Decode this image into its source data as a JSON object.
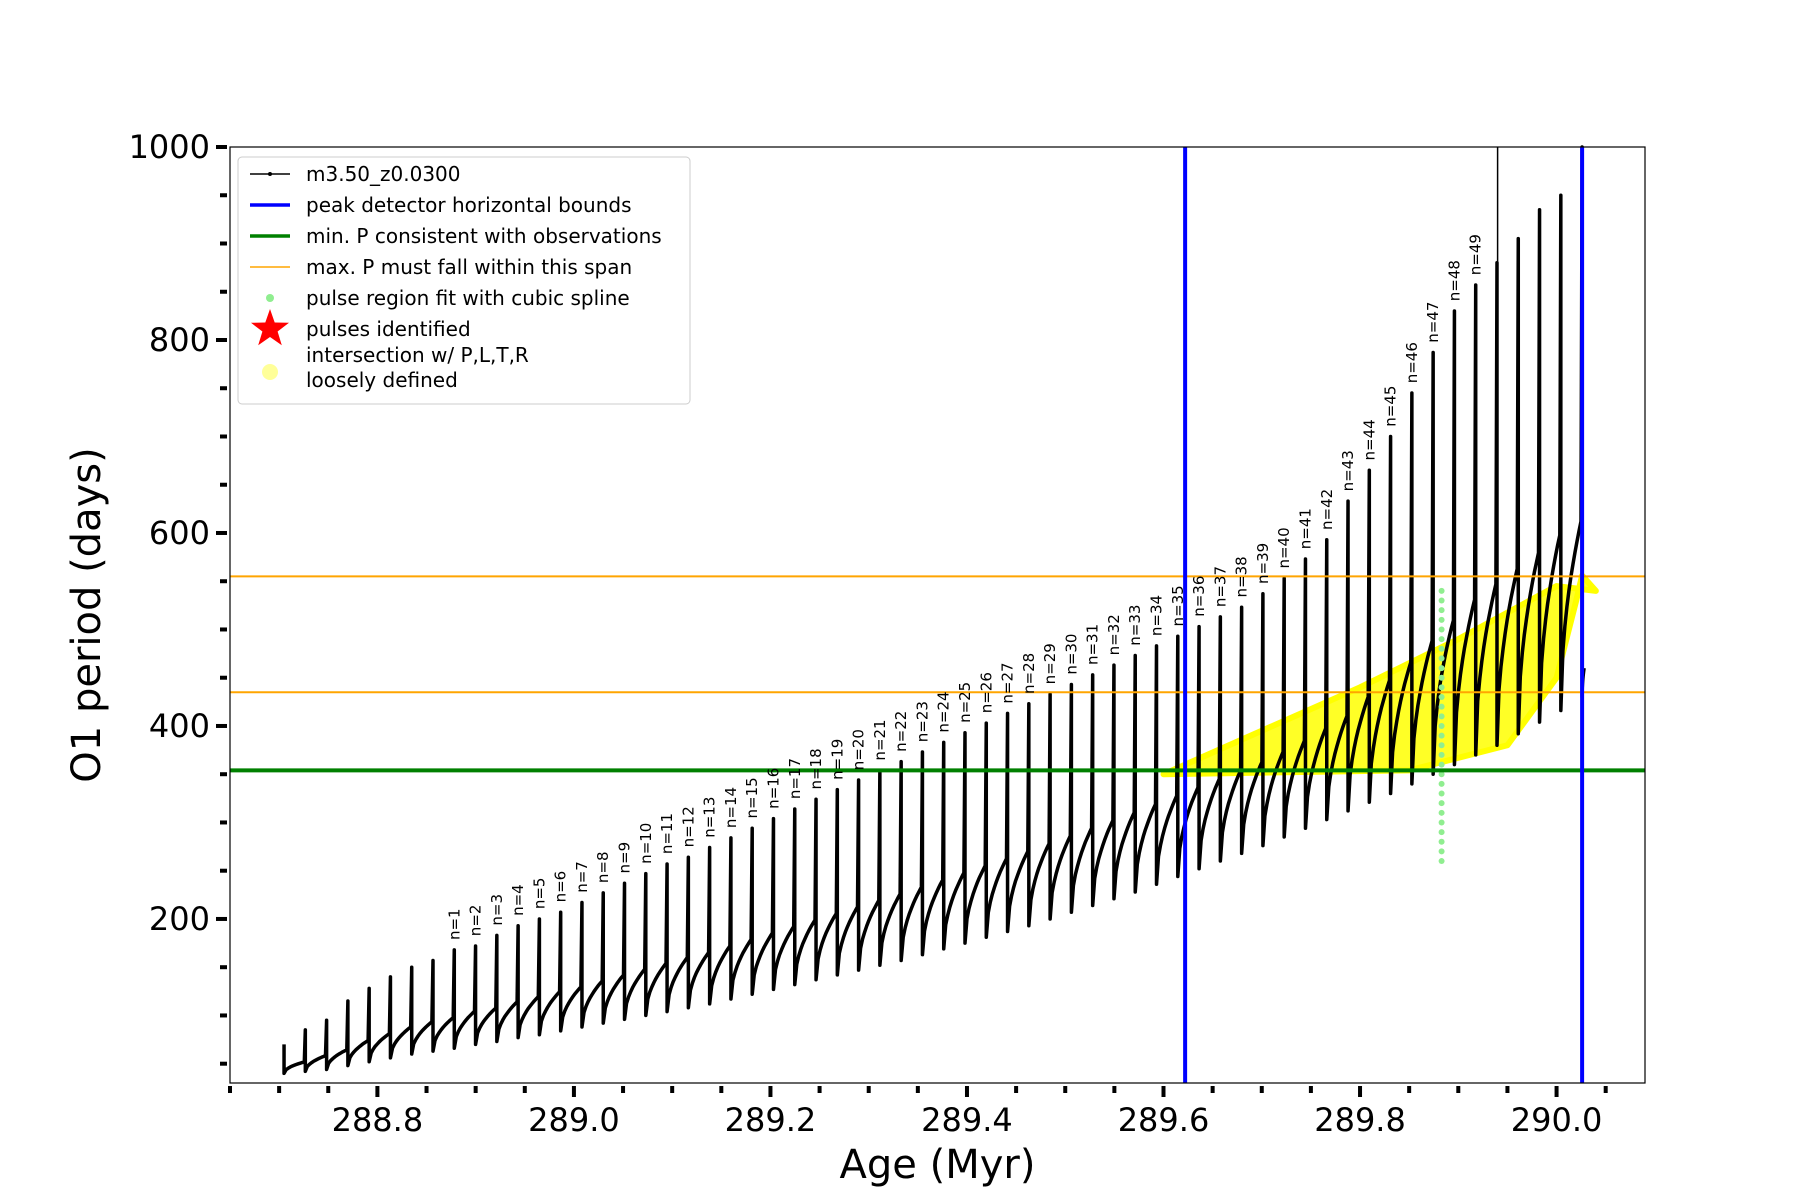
{
  "chart_data": {
    "type": "scatter",
    "title": "",
    "xlabel": "Age (Myr)",
    "ylabel": "O1 period (days)",
    "xlim": [
      288.65,
      290.09
    ],
    "ylim": [
      30,
      1000
    ],
    "xticks": [
      "288.8",
      "289.0",
      "289.2",
      "289.4",
      "289.6",
      "289.8",
      "290.0"
    ],
    "xtick_values": [
      288.8,
      289.0,
      289.2,
      289.4,
      289.6,
      289.8,
      290.0
    ],
    "yticks": [
      "200",
      "400",
      "600",
      "800",
      "1000"
    ],
    "ytick_values": [
      200,
      400,
      600,
      800,
      1000
    ],
    "grid": false,
    "legend_position": "top-left",
    "legend": [
      {
        "key": "track",
        "label": "m3.50_z0.0300",
        "color": "#000000",
        "marker": "line-dot"
      },
      {
        "key": "bounds",
        "label": "peak detector horizontal bounds",
        "color": "#0000ff",
        "marker": "line"
      },
      {
        "key": "minp",
        "label": "min. P consistent with observations",
        "color": "#008000",
        "marker": "line"
      },
      {
        "key": "maxp",
        "label": "max. P must fall within this span",
        "color": "#ffa500",
        "marker": "line"
      },
      {
        "key": "spline",
        "label": "pulse region fit with cubic spline",
        "color": "#90ee90",
        "marker": "dot"
      },
      {
        "key": "pulses",
        "label": "pulses identified",
        "color": "#ff0000",
        "marker": "star"
      },
      {
        "key": "intersect",
        "label": "intersection w/ P,L,T,R",
        "label2": "loosely defined",
        "color": "#ffff99",
        "marker": "circle"
      }
    ],
    "vertical_lines": [
      {
        "x": 289.622,
        "color": "#0000ff",
        "name": "peak detector horizontal bounds"
      },
      {
        "x": 290.026,
        "color": "#0000ff",
        "name": "peak detector horizontal bounds"
      }
    ],
    "horizontal_lines": [
      {
        "y": 354,
        "color": "#008000",
        "name": "min. P consistent with observations"
      },
      {
        "y": 435,
        "color": "#ffa500",
        "name": "max. P must fall within this span"
      },
      {
        "y": 555,
        "color": "#ffa500",
        "name": "max. P must fall within this span"
      }
    ],
    "pulse_series": {
      "name": "m3.50_z0.0300",
      "color": "#000000",
      "count": 62,
      "x_start": 288.705,
      "x_end": 290.026,
      "peak_values": [
        70,
        85,
        95,
        115,
        128,
        140,
        150,
        157,
        168,
        172,
        183,
        193,
        200,
        207,
        217,
        227,
        237,
        247,
        257,
        264,
        274,
        284,
        294,
        304,
        314,
        324,
        334,
        344,
        354,
        363,
        373,
        383,
        393,
        403,
        413,
        423,
        433,
        443,
        453,
        463,
        473,
        483,
        493,
        503,
        513,
        523,
        537,
        553,
        573,
        593,
        633,
        665,
        700,
        745,
        787,
        830,
        857,
        880,
        905,
        935,
        950,
        1000
      ],
      "min_values": [
        40,
        42,
        44,
        48,
        52,
        56,
        60,
        63,
        66,
        70,
        73,
        77,
        80,
        84,
        88,
        92,
        96,
        100,
        104,
        108,
        112,
        117,
        122,
        127,
        132,
        137,
        142,
        147,
        152,
        157,
        163,
        169,
        175,
        181,
        187,
        193,
        200,
        207,
        214,
        221,
        228,
        236,
        244,
        252,
        260,
        268,
        276,
        285,
        294,
        303,
        312,
        321,
        330,
        340,
        350,
        360,
        370,
        380,
        392,
        404,
        416,
        430
      ]
    },
    "pulse_labels": [
      "n=1",
      "n=2",
      "n=3",
      "n=4",
      "n=5",
      "n=6",
      "n=7",
      "n=8",
      "n=9",
      "n=10",
      "n=11",
      "n=12",
      "n=13",
      "n=14",
      "n=15",
      "n=16",
      "n=17",
      "n=18",
      "n=19",
      "n=20",
      "n=21",
      "n=22",
      "n=23",
      "n=24",
      "n=25",
      "n=26",
      "n=27",
      "n=28",
      "n=29",
      "n=30",
      "n=31",
      "n=32",
      "n=33",
      "n=34",
      "n=35",
      "n=36",
      "n=37",
      "n=38",
      "n=39",
      "n=40",
      "n=41",
      "n=42",
      "n=43",
      "n=44",
      "n=45",
      "n=46",
      "n=47",
      "n=48",
      "n=49"
    ],
    "spline_region": {
      "x": 289.883,
      "y_min": 260,
      "y_max": 540,
      "color": "#90ee90"
    },
    "intersection_region": {
      "color": "#ffff00",
      "lower_boundary": [
        [
          289.85,
          354
        ],
        [
          289.95,
          380
        ],
        [
          290.0,
          450
        ],
        [
          290.02,
          530
        ],
        [
          290.026,
          556
        ]
      ],
      "upper_boundary": [
        [
          289.6,
          350
        ],
        [
          289.7,
          395
        ],
        [
          289.8,
          440
        ],
        [
          289.9,
          490
        ],
        [
          290.0,
          545
        ],
        [
          290.04,
          540
        ]
      ]
    },
    "tall_marker": {
      "x": 289.94,
      "y_min": 590,
      "y_max": 1000,
      "color": "#000000"
    }
  }
}
